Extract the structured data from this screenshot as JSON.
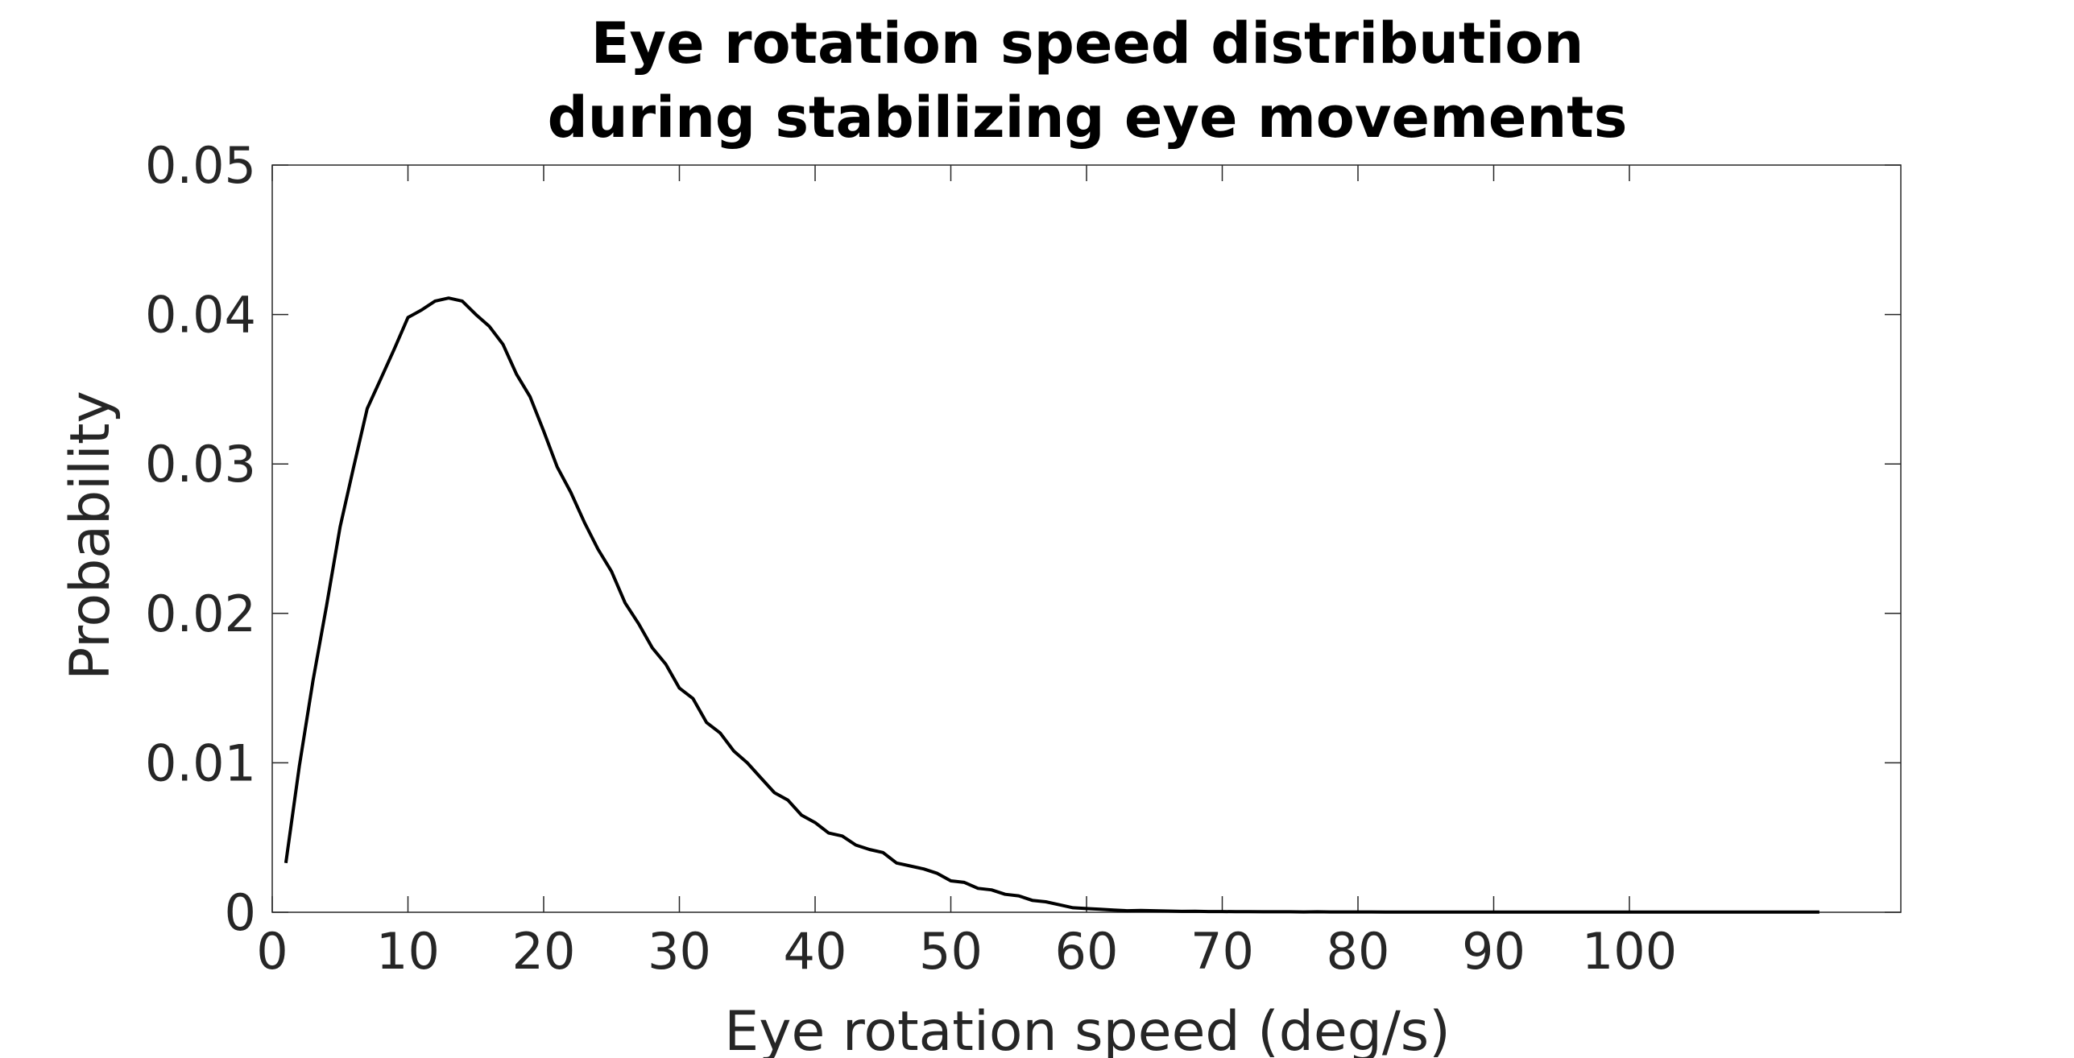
{
  "chart_data": {
    "type": "line",
    "title_lines": [
      "Eye rotation speed distribution",
      "during stabilizing eye movements"
    ],
    "xlabel": "Eye rotation speed (deg/s)",
    "ylabel": "Probability",
    "xlim": [
      0,
      120
    ],
    "ylim": [
      0,
      0.05
    ],
    "x_ticks": [
      0,
      10,
      20,
      30,
      40,
      50,
      60,
      70,
      80,
      90,
      100
    ],
    "y_ticks": [
      0,
      0.01,
      0.02,
      0.03,
      0.04,
      0.05
    ],
    "x_tick_labels": [
      "0",
      "10",
      "20",
      "30",
      "40",
      "50",
      "60",
      "70",
      "80",
      "90",
      "100"
    ],
    "y_tick_labels": [
      "0",
      "0.01",
      "0.02",
      "0.03",
      "0.04",
      "0.05"
    ],
    "grid": false,
    "box": true,
    "colors": {
      "line": "#000000",
      "axes": "#262626",
      "tick_text": "#262626"
    },
    "series": [
      {
        "x": [
          1,
          2,
          3,
          4,
          5,
          6,
          7,
          8,
          9,
          10,
          11,
          12,
          13,
          14,
          15,
          16,
          17,
          18,
          19,
          20,
          21,
          22,
          23,
          24,
          25,
          26,
          27,
          28,
          29,
          30,
          31,
          32,
          33,
          34,
          35,
          36,
          37,
          38,
          39,
          40,
          41,
          42,
          43,
          44,
          45,
          46,
          47,
          48,
          49,
          50,
          51,
          52,
          53,
          54,
          55,
          56,
          57,
          58,
          59,
          60,
          61,
          62,
          63,
          64,
          65,
          66,
          67,
          68,
          69,
          70,
          71,
          72,
          73,
          74,
          75,
          76,
          77,
          78,
          79,
          80,
          81,
          82,
          83,
          84,
          85,
          86,
          87,
          88,
          89,
          90,
          91,
          92,
          93,
          94,
          95,
          96,
          97,
          98,
          99,
          100,
          101,
          102,
          103,
          104,
          105,
          106,
          107,
          108,
          109,
          110,
          111,
          112,
          113,
          114
        ],
        "y": [
          0.0033,
          0.0098,
          0.0155,
          0.0205,
          0.0258,
          0.0298,
          0.0337,
          0.0357,
          0.0377,
          0.0398,
          0.0403,
          0.0409,
          0.0411,
          0.0409,
          0.04,
          0.0392,
          0.038,
          0.036,
          0.0345,
          0.0322,
          0.0298,
          0.0281,
          0.0261,
          0.0243,
          0.0228,
          0.0207,
          0.0193,
          0.0177,
          0.0166,
          0.015,
          0.0143,
          0.0127,
          0.012,
          0.0108,
          0.01,
          0.009,
          0.008,
          0.0075,
          0.0065,
          0.006,
          0.0053,
          0.0051,
          0.0045,
          0.0042,
          0.004,
          0.0033,
          0.0031,
          0.0029,
          0.0026,
          0.0021,
          0.002,
          0.0016,
          0.0015,
          0.0012,
          0.0011,
          0.0008,
          0.0007,
          0.0005,
          0.0003,
          0.00025,
          0.0002,
          0.00015,
          0.0001,
          0.00012,
          0.0001,
          8e-05,
          6e-05,
          7e-05,
          5e-05,
          5e-05,
          4e-05,
          4e-05,
          3e-05,
          3e-05,
          3e-05,
          2e-05,
          3e-05,
          2e-05,
          2e-05,
          2e-05,
          2e-05,
          1e-05,
          1e-05,
          1e-05,
          1e-05,
          1e-05,
          1e-05,
          1e-05,
          1e-05,
          1e-05,
          1e-05,
          1e-05,
          1e-05,
          1e-05,
          1e-05,
          1e-05,
          1e-05,
          1e-05,
          1e-05,
          1e-05,
          1e-05,
          1e-05,
          1e-05,
          1e-05,
          1e-05,
          1e-05,
          1e-05,
          1e-05,
          1e-05,
          1e-05,
          1e-05,
          1e-05,
          1e-05,
          1e-05
        ]
      }
    ]
  }
}
